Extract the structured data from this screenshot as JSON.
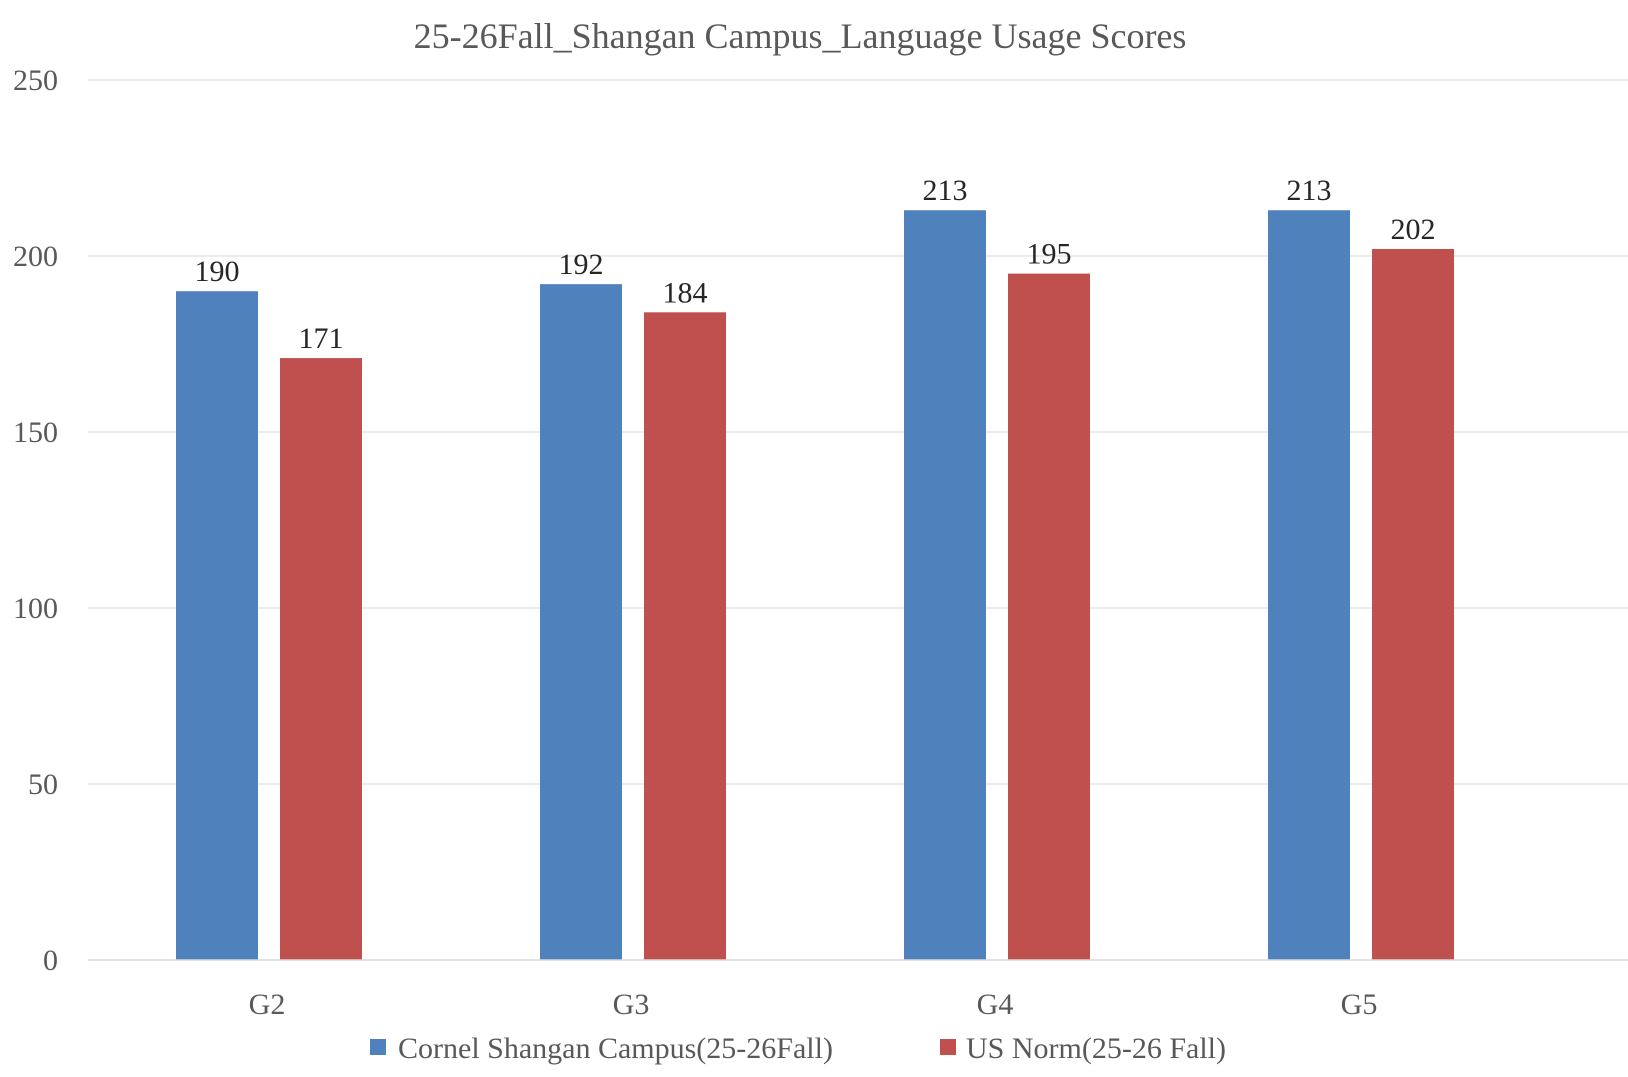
{
  "chart_data": {
    "type": "bar",
    "title": "25-26Fall_Shangan Campus_Language Usage Scores",
    "xlabel": "",
    "ylabel": "",
    "categories": [
      "G2",
      "G3",
      "G4",
      "G5"
    ],
    "ylim": [
      0,
      250
    ],
    "yticks": [
      0,
      50,
      100,
      150,
      200,
      250
    ],
    "grid": true,
    "legend_position": "bottom",
    "series": [
      {
        "name": "Cornel Shangan Campus(25-26Fall)",
        "color": "#4f81bd",
        "values": [
          190,
          192,
          213,
          213
        ]
      },
      {
        "name": "US Norm(25-26 Fall)",
        "color": "#c0504d",
        "values": [
          171,
          184,
          195,
          202
        ]
      }
    ],
    "data_labels": [
      [
        "190",
        "192",
        "213",
        "213"
      ],
      [
        "171",
        "184",
        "195",
        "202"
      ]
    ]
  }
}
